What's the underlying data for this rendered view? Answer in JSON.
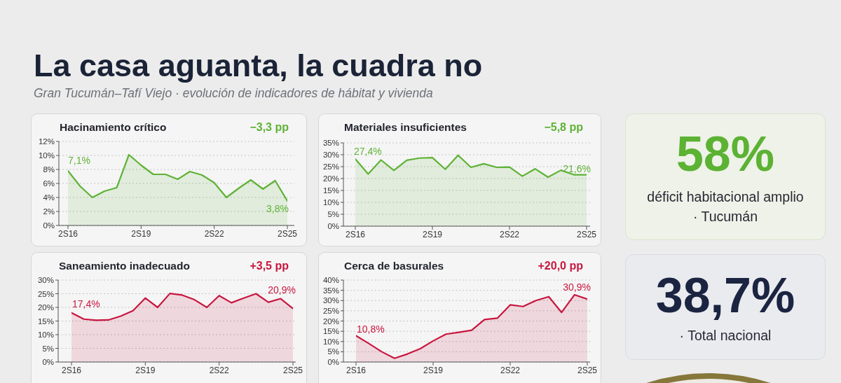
{
  "chart_data": [
    {
      "type": "other",
      "title": "La casa aguanta, la cuadra no",
      "subtitle": "Gran Tucumán–Tafí Viejo · evolución de indicadores de hábitat y vivienda"
    },
    {
      "type": "area",
      "title": "Hacinamiento crítico",
      "annotations": [
        "−3,3 pp",
        "7,1%",
        "3,8%"
      ],
      "categories": [
        "2S16",
        null,
        null,
        null,
        null,
        null,
        "2S19",
        null,
        null,
        null,
        null,
        null,
        "2S22",
        null,
        null,
        null,
        null,
        null,
        "2S25"
      ],
      "values": [
        7.8,
        5.6,
        4.0,
        4.9,
        5.4,
        10.1,
        8.6,
        7.3,
        7.3,
        6.6,
        7.7,
        7.2,
        6.1,
        4.0,
        5.3,
        6.5,
        5.2,
        6.4,
        3.5
      ],
      "color": "#5fb236",
      "ylim": [
        0,
        12
      ],
      "yticks": [
        {
          "value": 0,
          "label": "0%"
        },
        {
          "value": 2,
          "label": "2%"
        },
        {
          "value": 4,
          "label": "4%"
        },
        {
          "value": 6,
          "label": "6%"
        },
        {
          "value": 8,
          "label": "8%"
        },
        {
          "value": 10,
          "label": "10%"
        },
        {
          "value": 12,
          "label": "12%"
        }
      ],
      "grid": "y"
    },
    {
      "type": "area",
      "title": "Materiales insuficientes",
      "annotations": [
        "−5,8 pp",
        "27,4%",
        "21,6%"
      ],
      "categories": [
        "2S16",
        null,
        null,
        null,
        null,
        null,
        "2S19",
        null,
        null,
        null,
        null,
        null,
        "2S22",
        null,
        null,
        null,
        null,
        null,
        "2S25"
      ],
      "values": [
        28.2,
        21.9,
        27.8,
        23.4,
        27.7,
        28.6,
        28.8,
        23.9,
        29.8,
        24.7,
        26.2,
        24.7,
        24.8,
        21.0,
        24.1,
        20.6,
        23.5,
        21.6,
        21.6
      ],
      "color": "#5fb236",
      "ylim": [
        0,
        35
      ],
      "yticks": [
        {
          "value": 0,
          "label": "0%"
        },
        {
          "value": 5,
          "label": "5%"
        },
        {
          "value": 10,
          "label": "10%"
        },
        {
          "value": 15,
          "label": "15%"
        },
        {
          "value": 20,
          "label": "20%"
        },
        {
          "value": 25,
          "label": "25%"
        },
        {
          "value": 30,
          "label": "30%"
        },
        {
          "value": 35,
          "label": "35%"
        }
      ],
      "grid": "y"
    },
    {
      "type": "other",
      "title": "58%",
      "annotations": [
        "déficit habitacional amplio",
        "· Tucumán"
      ],
      "color": "#5cb233"
    },
    {
      "type": "area",
      "title": "Saneamiento inadecuado",
      "annotations": [
        "+3,5 pp",
        "17,4%",
        "20,9%"
      ],
      "categories": [
        "2S16",
        null,
        null,
        null,
        null,
        null,
        "2S19",
        null,
        null,
        null,
        null,
        null,
        "2S22",
        null,
        null,
        null,
        null,
        null,
        "2S25"
      ],
      "values": [
        18.0,
        15.7,
        15.3,
        15.4,
        16.8,
        18.8,
        23.4,
        20.0,
        25.1,
        24.5,
        22.8,
        20.0,
        24.3,
        21.7,
        23.4,
        25.0,
        21.9,
        23.2,
        19.6
      ],
      "color": "#c8163f",
      "ylim": [
        0,
        30
      ],
      "yticks": [
        {
          "value": 0,
          "label": "0%"
        },
        {
          "value": 5,
          "label": "5%"
        },
        {
          "value": 10,
          "label": "10%"
        },
        {
          "value": 15,
          "label": "15%"
        },
        {
          "value": 20,
          "label": "20%"
        },
        {
          "value": 25,
          "label": "25%"
        },
        {
          "value": 30,
          "label": "30%"
        }
      ],
      "grid": "y"
    },
    {
      "type": "area",
      "title": "Cerca de basurales",
      "annotations": [
        "+20,0 pp",
        "10,8%",
        "30,9%"
      ],
      "categories": [
        "2S16",
        null,
        null,
        null,
        null,
        null,
        "2S19",
        null,
        null,
        null,
        null,
        null,
        "2S22",
        null,
        null,
        null,
        null,
        null,
        "2S25"
      ],
      "values": [
        12.8,
        9.0,
        5.0,
        1.8,
        3.9,
        6.5,
        10.3,
        13.6,
        14.5,
        15.5,
        20.7,
        21.4,
        27.9,
        27.1,
        30.0,
        31.9,
        24.2,
        32.8,
        30.7
      ],
      "color": "#c8163f",
      "ylim": [
        0,
        40
      ],
      "yticks": [
        {
          "value": 0,
          "label": "0%"
        },
        {
          "value": 5,
          "label": "5%"
        },
        {
          "value": 10,
          "label": "10%"
        },
        {
          "value": 15,
          "label": "15%"
        },
        {
          "value": 20,
          "label": "20%"
        },
        {
          "value": 25,
          "label": "25%"
        },
        {
          "value": 30,
          "label": "30%"
        },
        {
          "value": 35,
          "label": "35%"
        },
        {
          "value": 40,
          "label": "40%"
        }
      ],
      "grid": "y"
    },
    {
      "type": "other",
      "title": "38,7%",
      "annotations": [
        "· Total nacional"
      ],
      "color": "#1b2440"
    }
  ]
}
